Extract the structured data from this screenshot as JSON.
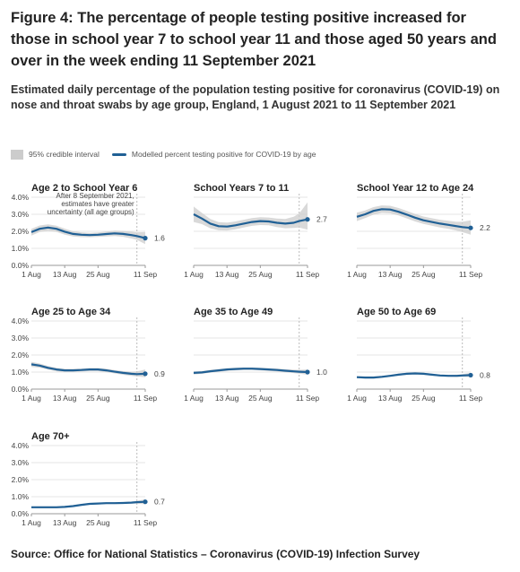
{
  "title": "Figure 4: The percentage of people testing positive increased for those in school year 7 to school year 11 and those aged 50 years and over in the week ending 11 September 2021",
  "subtitle": "Estimated daily percentage of the population testing positive for coronavirus (COVID-19) on nose and throat swabs by age group, England, 1 August 2021 to 11 September 2021",
  "legend": {
    "interval": "95% credible interval",
    "line": "Modelled percent testing positive for COVID-19 by age"
  },
  "source": "Source: Office for National Statistics – Coronavirus (COVID-19) Infection Survey",
  "colors": {
    "line": "#206095",
    "band": "#cccccc",
    "axis": "#999999",
    "ref": "#bbbbbb"
  },
  "chart_data": [
    {
      "type": "line",
      "title": "Age 2 to School Year 6",
      "x": [
        "1 Aug",
        "4 Aug",
        "7 Aug",
        "10 Aug",
        "13 Aug",
        "16 Aug",
        "19 Aug",
        "22 Aug",
        "25 Aug",
        "28 Aug",
        "31 Aug",
        "3 Sep",
        "6 Sep",
        "8 Sep",
        "11 Sep"
      ],
      "y": [
        1.95,
        2.15,
        2.22,
        2.15,
        1.98,
        1.85,
        1.8,
        1.78,
        1.8,
        1.84,
        1.88,
        1.85,
        1.78,
        1.72,
        1.6
      ],
      "lower": [
        1.75,
        1.96,
        2.03,
        1.97,
        1.8,
        1.7,
        1.66,
        1.65,
        1.67,
        1.7,
        1.72,
        1.68,
        1.58,
        1.5,
        1.25
      ],
      "upper": [
        2.15,
        2.34,
        2.41,
        2.33,
        2.16,
        2.0,
        1.94,
        1.91,
        1.93,
        1.98,
        2.04,
        2.02,
        1.98,
        1.94,
        1.95
      ],
      "end_label": "1.6",
      "annotation": [
        "After 8 September 2021,",
        "estimates have greater",
        "uncertainty (all age groups)"
      ],
      "x_ticks": [
        "1 Aug",
        "13 Aug",
        "25 Aug",
        "11 Sep"
      ],
      "y_ticks": [
        "4.0%",
        "3.0%",
        "2.0%",
        "1.0%",
        "0.0%"
      ],
      "ylim": [
        0,
        4
      ]
    },
    {
      "type": "line",
      "title": "School Years 7 to 11",
      "x": [
        "1 Aug",
        "4 Aug",
        "7 Aug",
        "10 Aug",
        "13 Aug",
        "16 Aug",
        "19 Aug",
        "22 Aug",
        "25 Aug",
        "28 Aug",
        "31 Aug",
        "3 Sep",
        "6 Sep",
        "8 Sep",
        "11 Sep"
      ],
      "y": [
        3.0,
        2.75,
        2.45,
        2.3,
        2.28,
        2.35,
        2.45,
        2.55,
        2.6,
        2.58,
        2.5,
        2.45,
        2.5,
        2.6,
        2.7
      ],
      "lower": [
        2.55,
        2.42,
        2.18,
        2.06,
        2.05,
        2.12,
        2.22,
        2.32,
        2.37,
        2.35,
        2.25,
        2.18,
        2.2,
        2.22,
        2.1
      ],
      "upper": [
        3.45,
        3.08,
        2.72,
        2.54,
        2.51,
        2.58,
        2.68,
        2.78,
        2.83,
        2.81,
        2.75,
        2.72,
        2.85,
        3.05,
        3.7
      ],
      "end_label": "2.7",
      "x_ticks": [
        "1 Aug",
        "13 Aug",
        "25 Aug",
        "11 Sep"
      ],
      "y_ticks": [],
      "ylim": [
        0,
        4
      ]
    },
    {
      "type": "line",
      "title": "School Year 12 to Age 24",
      "x": [
        "1 Aug",
        "4 Aug",
        "7 Aug",
        "10 Aug",
        "13 Aug",
        "16 Aug",
        "19 Aug",
        "22 Aug",
        "25 Aug",
        "28 Aug",
        "31 Aug",
        "3 Sep",
        "6 Sep",
        "8 Sep",
        "11 Sep"
      ],
      "y": [
        2.85,
        3.0,
        3.2,
        3.3,
        3.28,
        3.15,
        2.98,
        2.8,
        2.65,
        2.55,
        2.45,
        2.38,
        2.3,
        2.25,
        2.2
      ],
      "lower": [
        2.6,
        2.78,
        2.98,
        3.08,
        3.06,
        2.93,
        2.76,
        2.58,
        2.43,
        2.33,
        2.22,
        2.14,
        2.04,
        1.95,
        1.8
      ],
      "upper": [
        3.1,
        3.22,
        3.42,
        3.52,
        3.5,
        3.37,
        3.2,
        3.02,
        2.87,
        2.77,
        2.68,
        2.62,
        2.56,
        2.56,
        2.65
      ],
      "end_label": "2.2",
      "x_ticks": [
        "1 Aug",
        "13 Aug",
        "25 Aug",
        "11 Sep"
      ],
      "y_ticks": [],
      "ylim": [
        0,
        4
      ]
    },
    {
      "type": "line",
      "title": "Age 25 to Age 34",
      "x": [
        "1 Aug",
        "4 Aug",
        "7 Aug",
        "10 Aug",
        "13 Aug",
        "16 Aug",
        "19 Aug",
        "22 Aug",
        "25 Aug",
        "28 Aug",
        "31 Aug",
        "3 Sep",
        "6 Sep",
        "8 Sep",
        "11 Sep"
      ],
      "y": [
        1.45,
        1.38,
        1.25,
        1.15,
        1.1,
        1.1,
        1.12,
        1.15,
        1.15,
        1.1,
        1.02,
        0.95,
        0.9,
        0.88,
        0.9
      ],
      "lower": [
        1.3,
        1.26,
        1.14,
        1.05,
        1.01,
        1.01,
        1.03,
        1.06,
        1.06,
        1.0,
        0.92,
        0.84,
        0.78,
        0.74,
        0.7
      ],
      "upper": [
        1.6,
        1.5,
        1.36,
        1.25,
        1.19,
        1.19,
        1.21,
        1.24,
        1.24,
        1.2,
        1.12,
        1.06,
        1.02,
        1.04,
        1.15
      ],
      "end_label": "0.9",
      "x_ticks": [
        "1 Aug",
        "13 Aug",
        "25 Aug",
        "11 Sep"
      ],
      "y_ticks": [
        "4.0%",
        "3.0%",
        "2.0%",
        "1.0%",
        "0.0%"
      ],
      "ylim": [
        0,
        4
      ]
    },
    {
      "type": "line",
      "title": "Age 35 to Age 49",
      "x": [
        "1 Aug",
        "4 Aug",
        "7 Aug",
        "10 Aug",
        "13 Aug",
        "16 Aug",
        "19 Aug",
        "22 Aug",
        "25 Aug",
        "28 Aug",
        "31 Aug",
        "3 Sep",
        "6 Sep",
        "8 Sep",
        "11 Sep"
      ],
      "y": [
        0.95,
        0.98,
        1.05,
        1.1,
        1.15,
        1.18,
        1.2,
        1.2,
        1.18,
        1.15,
        1.12,
        1.08,
        1.04,
        1.02,
        1.0
      ],
      "lower": [
        0.86,
        0.9,
        0.97,
        1.02,
        1.07,
        1.1,
        1.12,
        1.12,
        1.1,
        1.07,
        1.03,
        0.99,
        0.94,
        0.91,
        0.85
      ],
      "upper": [
        1.04,
        1.06,
        1.13,
        1.18,
        1.23,
        1.26,
        1.28,
        1.28,
        1.26,
        1.23,
        1.21,
        1.17,
        1.14,
        1.13,
        1.15
      ],
      "end_label": "1.0",
      "x_ticks": [
        "1 Aug",
        "13 Aug",
        "25 Aug",
        "11 Sep"
      ],
      "y_ticks": [],
      "ylim": [
        0,
        4
      ]
    },
    {
      "type": "line",
      "title": "Age 50 to Age 69",
      "x": [
        "1 Aug",
        "4 Aug",
        "7 Aug",
        "10 Aug",
        "13 Aug",
        "16 Aug",
        "19 Aug",
        "22 Aug",
        "25 Aug",
        "28 Aug",
        "31 Aug",
        "3 Sep",
        "6 Sep",
        "8 Sep",
        "11 Sep"
      ],
      "y": [
        0.7,
        0.68,
        0.68,
        0.72,
        0.78,
        0.85,
        0.9,
        0.92,
        0.9,
        0.85,
        0.8,
        0.78,
        0.78,
        0.8,
        0.82
      ],
      "lower": [
        0.64,
        0.62,
        0.62,
        0.66,
        0.72,
        0.79,
        0.84,
        0.86,
        0.84,
        0.79,
        0.74,
        0.72,
        0.71,
        0.72,
        0.7
      ],
      "upper": [
        0.76,
        0.74,
        0.74,
        0.78,
        0.84,
        0.91,
        0.96,
        0.98,
        0.96,
        0.91,
        0.86,
        0.84,
        0.85,
        0.88,
        0.95
      ],
      "end_label": "0.8",
      "x_ticks": [
        "1 Aug",
        "13 Aug",
        "25 Aug",
        "11 Sep"
      ],
      "y_ticks": [],
      "ylim": [
        0,
        4
      ]
    },
    {
      "type": "line",
      "title": "Age 70+",
      "x": [
        "1 Aug",
        "4 Aug",
        "7 Aug",
        "10 Aug",
        "13 Aug",
        "16 Aug",
        "19 Aug",
        "22 Aug",
        "25 Aug",
        "28 Aug",
        "31 Aug",
        "3 Sep",
        "6 Sep",
        "8 Sep",
        "11 Sep"
      ],
      "y": [
        0.38,
        0.38,
        0.38,
        0.38,
        0.4,
        0.45,
        0.52,
        0.58,
        0.6,
        0.62,
        0.62,
        0.63,
        0.65,
        0.68,
        0.7
      ],
      "lower": [
        0.33,
        0.33,
        0.33,
        0.33,
        0.35,
        0.4,
        0.47,
        0.53,
        0.55,
        0.57,
        0.57,
        0.58,
        0.59,
        0.6,
        0.55
      ],
      "upper": [
        0.43,
        0.43,
        0.43,
        0.43,
        0.45,
        0.5,
        0.57,
        0.63,
        0.65,
        0.67,
        0.67,
        0.68,
        0.71,
        0.76,
        0.85
      ],
      "end_label": "0.7",
      "x_ticks": [
        "1 Aug",
        "13 Aug",
        "25 Aug",
        "11 Sep"
      ],
      "y_ticks": [
        "4.0%",
        "3.0%",
        "2.0%",
        "1.0%",
        "0.0%"
      ],
      "ylim": [
        0,
        4
      ]
    }
  ]
}
